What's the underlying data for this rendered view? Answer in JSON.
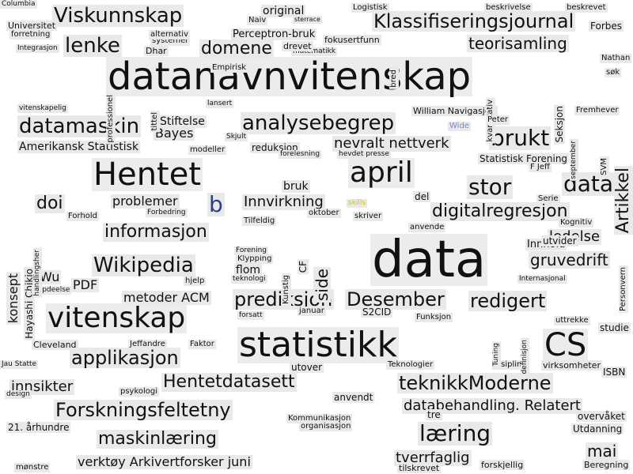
{
  "words": [
    {
      "text": "datanavnvitenskap",
      "size": 48,
      "color": "#111111"
    },
    {
      "text": "data",
      "size": 64,
      "color": "#111111"
    },
    {
      "text": "statistikk",
      "size": 44,
      "color": "#111111"
    },
    {
      "text": "Hentet",
      "size": 40,
      "color": "#111111"
    },
    {
      "text": "april",
      "size": 36,
      "color": "#111111"
    },
    {
      "text": "vitenskap",
      "size": 36,
      "color": "#111111"
    },
    {
      "text": "CS",
      "size": 40,
      "color": "#111111"
    },
    {
      "text": "Viskunnskap",
      "size": 26,
      "color": "#111111"
    },
    {
      "text": "Klassifiseringsjournal",
      "size": 24,
      "color": "#111111"
    },
    {
      "text": "lenke",
      "size": 26,
      "color": "#111111"
    },
    {
      "text": "domene",
      "size": 22,
      "color": "#111111"
    },
    {
      "text": "teorisamling",
      "size": 20,
      "color": "#111111"
    },
    {
      "text": "datamaskin",
      "size": 26,
      "color": "#111111"
    },
    {
      "text": "analysebegrep",
      "size": 26,
      "color": "#111111"
    },
    {
      "text": "brukt",
      "size": 28,
      "color": "#111111"
    },
    {
      "text": "nevralt nettverk",
      "size": 18,
      "color": "#111111"
    },
    {
      "text": "data",
      "size": 28,
      "color": "#111111"
    },
    {
      "text": "stor",
      "size": 28,
      "color": "#111111"
    },
    {
      "text": "digitalregresjon",
      "size": 22,
      "color": "#111111"
    },
    {
      "text": "informasjon",
      "size": 22,
      "color": "#111111"
    },
    {
      "text": "Wikipedia",
      "size": 26,
      "color": "#111111"
    },
    {
      "text": "prediksjon",
      "size": 24,
      "color": "#111111"
    },
    {
      "text": "Desember",
      "size": 24,
      "color": "#111111"
    },
    {
      "text": "redigert",
      "size": 24,
      "color": "#111111"
    },
    {
      "text": "applikasjon",
      "size": 24,
      "color": "#111111"
    },
    {
      "text": "Hentetdatasett",
      "size": 22,
      "color": "#111111"
    },
    {
      "text": "teknikkModerne",
      "size": 24,
      "color": "#111111"
    },
    {
      "text": "Forskningsfeltetny",
      "size": 24,
      "color": "#111111"
    },
    {
      "text": "databehandling. Relatert",
      "size": 18,
      "color": "#111111"
    },
    {
      "text": "læring",
      "size": 28,
      "color": "#111111"
    },
    {
      "text": "maskinlæring",
      "size": 22,
      "color": "#111111"
    },
    {
      "text": "verktøy Arkivertforsker juni",
      "size": 16,
      "color": "#111111"
    },
    {
      "text": "tverrfaglig",
      "size": 18,
      "color": "#111111"
    },
    {
      "text": "mai",
      "size": 20,
      "color": "#111111"
    },
    {
      "text": "Artikkel",
      "size": 22,
      "color": "#111111"
    },
    {
      "text": "doi",
      "size": 22,
      "color": "#111111"
    },
    {
      "text": "problemer",
      "size": 16,
      "color": "#111111"
    },
    {
      "text": "Innvirkning",
      "size": 18,
      "color": "#111111"
    },
    {
      "text": "gruvedrift",
      "size": 20,
      "color": "#111111"
    },
    {
      "text": "ledelse",
      "size": 18,
      "color": "#111111"
    },
    {
      "text": "side",
      "size": 20,
      "color": "#111111"
    },
    {
      "text": "konsept",
      "size": 16,
      "color": "#111111"
    },
    {
      "text": "Bayes",
      "size": 16,
      "color": "#111111"
    },
    {
      "text": "Amerikansk Statistisk",
      "size": 14,
      "color": "#111111"
    },
    {
      "text": "Stiftelse",
      "size": 14,
      "color": "#111111"
    },
    {
      "text": "metoder ACM",
      "size": 16,
      "color": "#111111"
    },
    {
      "text": "innsikter",
      "size": 18,
      "color": "#111111"
    },
    {
      "text": "original",
      "size": 14,
      "color": "#111111"
    },
    {
      "text": "Perceptron-bruk",
      "size": 13,
      "color": "#111111"
    },
    {
      "text": "Universitet",
      "size": 11,
      "color": "#111111"
    },
    {
      "text": "Forbes",
      "size": 12,
      "color": "#111111"
    },
    {
      "text": "Nathan",
      "size": 10,
      "color": "#111111"
    },
    {
      "text": "PDF",
      "size": 16,
      "color": "#111111"
    },
    {
      "text": "flom",
      "size": 14,
      "color": "#111111"
    },
    {
      "text": "Wu",
      "size": 16,
      "color": "#111111"
    },
    {
      "text": "21. århundre",
      "size": 12,
      "color": "#111111"
    },
    {
      "text": "overvåket",
      "size": 12,
      "color": "#111111"
    },
    {
      "text": "Utdanning",
      "size": 12,
      "color": "#111111"
    },
    {
      "text": "Beregning",
      "size": 11,
      "color": "#111111"
    },
    {
      "text": "ISBN",
      "size": 12,
      "color": "#111111"
    },
    {
      "text": "Statistisk Forening",
      "size": 12,
      "color": "#111111"
    },
    {
      "text": "William Navigasjon",
      "size": 11,
      "color": "#111111"
    },
    {
      "text": "S2CID",
      "size": 12,
      "color": "#111111"
    },
    {
      "text": "b",
      "size": 28,
      "color": "#2c3e8f"
    },
    {
      "text": "skills",
      "size": 9,
      "color": "#c9c13a"
    },
    {
      "text": "Wide",
      "size": 10,
      "color": "#6a8fd6"
    },
    {
      "text": "Innhold",
      "size": 13,
      "color": "#111111"
    },
    {
      "text": "utvider",
      "size": 12,
      "color": "#111111"
    },
    {
      "text": "virksomheter",
      "size": 11,
      "color": "#111111"
    },
    {
      "text": "studie",
      "size": 12,
      "color": "#111111"
    },
    {
      "text": "forskjellig",
      "size": 11,
      "color": "#111111"
    },
    {
      "text": "tilskrevet",
      "size": 11,
      "color": "#111111"
    },
    {
      "text": "mønstre",
      "size": 10,
      "color": "#111111"
    },
    {
      "text": "anvendt",
      "size": 12,
      "color": "#111111"
    },
    {
      "text": "Kommunikasjon",
      "size": 10,
      "color": "#111111"
    },
    {
      "text": "organisasjon",
      "size": 10,
      "color": "#111111"
    },
    {
      "text": "Hayashi Chikio",
      "size": 12,
      "color": "#111111"
    },
    {
      "text": "Empirisk",
      "size": 10,
      "color": "#111111"
    },
    {
      "text": "beskrevet",
      "size": 10,
      "color": "#111111"
    },
    {
      "text": "beskrivelse",
      "size": 10,
      "color": "#111111"
    },
    {
      "text": "Logistisk",
      "size": 10,
      "color": "#111111"
    },
    {
      "text": "Klypping",
      "size": 10,
      "color": "#111111"
    },
    {
      "text": "teknologi",
      "size": 9,
      "color": "#111111"
    },
    {
      "text": "Kunstig",
      "size": 10,
      "color": "#111111"
    },
    {
      "text": "CF",
      "size": 12,
      "color": "#111111"
    },
    {
      "text": "bred",
      "size": 10,
      "color": "#111111"
    },
    {
      "text": "Seksjon",
      "size": 12,
      "color": "#111111"
    },
    {
      "text": "kvantitativ",
      "size": 10,
      "color": "#111111"
    },
    {
      "text": "tittel",
      "size": 10,
      "color": "#111111"
    },
    {
      "text": "professionel",
      "size": 10,
      "color": "#111111"
    },
    {
      "text": "Serie",
      "size": 10,
      "color": "#111111"
    },
    {
      "text": "Kognitiv",
      "size": 10,
      "color": "#111111"
    },
    {
      "text": "uttrekke",
      "size": 10,
      "color": "#111111"
    },
    {
      "text": "Internasjonal",
      "size": 9,
      "color": "#111111"
    },
    {
      "text": "Personvern",
      "size": 10,
      "color": "#111111"
    },
    {
      "text": "Fremhever",
      "size": 10,
      "color": "#111111"
    },
    {
      "text": "SVM",
      "size": 10,
      "color": "#111111"
    },
    {
      "text": "bruk",
      "size": 14,
      "color": "#111111"
    },
    {
      "text": "del",
      "size": 12,
      "color": "#111111"
    },
    {
      "text": "skriver",
      "size": 10,
      "color": "#111111"
    },
    {
      "text": "anvende",
      "size": 10,
      "color": "#111111"
    },
    {
      "text": "oktober",
      "size": 10,
      "color": "#111111"
    },
    {
      "text": "Tilfeldig",
      "size": 10,
      "color": "#111111"
    },
    {
      "text": "Forbedring",
      "size": 9,
      "color": "#111111"
    },
    {
      "text": "Forhold",
      "size": 10,
      "color": "#111111"
    },
    {
      "text": "Skjult",
      "size": 9,
      "color": "#111111"
    },
    {
      "text": "reduksjon",
      "size": 12,
      "color": "#111111"
    },
    {
      "text": "forelesning",
      "size": 9,
      "color": "#111111"
    },
    {
      "text": "modeller",
      "size": 10,
      "color": "#111111"
    },
    {
      "text": "F Jeff",
      "size": 10,
      "color": "#111111"
    },
    {
      "text": "september",
      "size": 9,
      "color": "#111111"
    },
    {
      "text": "Peter",
      "size": 10,
      "color": "#111111"
    },
    {
      "text": "vitenskapelig",
      "size": 9,
      "color": "#111111"
    },
    {
      "text": "matematikk",
      "size": 9,
      "color": "#111111"
    },
    {
      "text": "fokusertfunn",
      "size": 11,
      "color": "#111111"
    },
    {
      "text": "drevet",
      "size": 11,
      "color": "#111111"
    },
    {
      "text": "Dhar",
      "size": 11,
      "color": "#111111"
    },
    {
      "text": "systemer",
      "size": 10,
      "color": "#111111"
    },
    {
      "text": "alternativ",
      "size": 10,
      "color": "#111111"
    },
    {
      "text": "forretning",
      "size": 10,
      "color": "#111111"
    },
    {
      "text": "Integrasjon",
      "size": 9,
      "color": "#111111"
    },
    {
      "text": "Naiv",
      "size": 10,
      "color": "#111111"
    },
    {
      "text": "sterrace",
      "size": 8,
      "color": "#111111"
    },
    {
      "text": "søk",
      "size": 10,
      "color": "#111111"
    },
    {
      "text": "forsatt",
      "size": 9,
      "color": "#111111"
    },
    {
      "text": "januar",
      "size": 10,
      "color": "#111111"
    },
    {
      "text": "Funksjon",
      "size": 10,
      "color": "#111111"
    },
    {
      "text": "Jeffandre",
      "size": 10,
      "color": "#111111"
    },
    {
      "text": "Faktor",
      "size": 10,
      "color": "#111111"
    },
    {
      "text": "Cleveland",
      "size": 11,
      "color": "#111111"
    },
    {
      "text": "Jau Statte",
      "size": 9,
      "color": "#111111"
    },
    {
      "text": "utover",
      "size": 12,
      "color": "#111111"
    },
    {
      "text": "Teknologier",
      "size": 10,
      "color": "#111111"
    },
    {
      "text": "disiplin",
      "size": 10,
      "color": "#111111"
    },
    {
      "text": "psykologi",
      "size": 10,
      "color": "#111111"
    },
    {
      "text": "design",
      "size": 9,
      "color": "#111111"
    },
    {
      "text": "popdeelse",
      "size": 9,
      "color": "#111111"
    },
    {
      "text": "hjelp",
      "size": 10,
      "color": "#111111"
    },
    {
      "text": "Forening",
      "size": 9,
      "color": "#111111"
    },
    {
      "text": "Tuning",
      "size": 9,
      "color": "#111111"
    },
    {
      "text": "definisjon",
      "size": 9,
      "color": "#111111"
    },
    {
      "text": "tre",
      "size": 12,
      "color": "#111111"
    },
    {
      "text": "handlingsher",
      "size": 9,
      "color": "#111111"
    },
    {
      "text": "lansert",
      "size": 9,
      "color": "#111111"
    },
    {
      "text": "hevdet presse",
      "size": 9,
      "color": "#111111"
    },
    {
      "text": "Columbia",
      "size": 9,
      "color": "#111111"
    }
  ]
}
